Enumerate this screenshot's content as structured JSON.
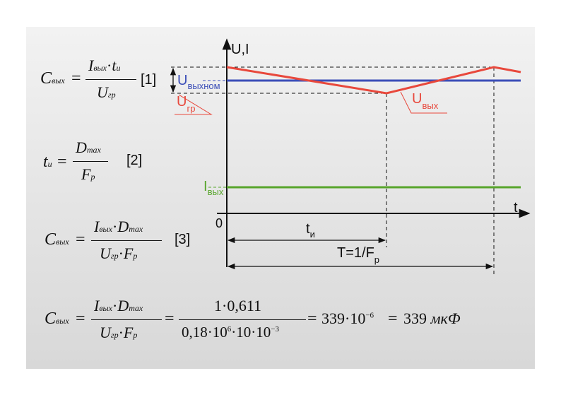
{
  "formulas": {
    "f1": {
      "lhs": {
        "base": "C",
        "sub": "вых"
      },
      "num": {
        "a": "I",
        "a_sub": "вых",
        "dot": "·",
        "b": "t",
        "b_sub": "и"
      },
      "den": {
        "a": "U",
        "a_sub": "гр"
      },
      "tag": "[1]"
    },
    "f2": {
      "lhs": {
        "base": "t",
        "sub": "и"
      },
      "num": {
        "a": "D",
        "a_sub": "max"
      },
      "den": {
        "a": "F",
        "a_sub": "р"
      },
      "tag": "[2]"
    },
    "f3": {
      "lhs": {
        "base": "C",
        "sub": "вых"
      },
      "num": {
        "a": "I",
        "a_sub": "вых",
        "dot": "·",
        "b": "D",
        "b_sub": "max"
      },
      "den": {
        "a": "U",
        "a_sub": "гр",
        "dot": "·",
        "b": "F",
        "b_sub": "р"
      },
      "tag": "[3]"
    },
    "f4": {
      "lhs": {
        "base": "C",
        "sub": "вых"
      },
      "num": {
        "a": "I",
        "a_sub": "вых",
        "dot": "·",
        "b": "D",
        "b_sub": "max"
      },
      "den": {
        "a": "U",
        "a_sub": "гр",
        "dot": "·",
        "b": "F",
        "b_sub": "р"
      },
      "num2": "1·0,611",
      "den2": {
        "p1": "0,18·10",
        "e1": "6",
        "p2": "·10·10",
        "e2": "−3"
      },
      "res1": {
        "base": "339·10",
        "exp": "−6"
      },
      "res2": {
        "value": "339",
        "unit": "мкФ"
      },
      "eq": "="
    }
  },
  "diagram": {
    "axis_y_label": "U,I",
    "axis_x_label": "t",
    "origin_label": "0",
    "u_nom": {
      "main": "U",
      "sub": "выхном"
    },
    "u_gr": {
      "main": "U",
      "sub": "гр"
    },
    "u_out": {
      "main": "U",
      "sub": "вых"
    },
    "i_out": {
      "main": "I",
      "sub": "вых"
    },
    "t_i": {
      "main": "t",
      "sub": "и"
    },
    "period": {
      "main": "T=1/F",
      "sub": "р"
    },
    "colors": {
      "red": "#e8483c",
      "blue": "#3c4fb8",
      "green": "#58a52c",
      "axis": "#111111"
    },
    "waveform": {
      "period_fraction_ti": 0.6,
      "ripple_top": 1.0,
      "ripple_bottom": -1.0,
      "u_nom_level": 0.0
    }
  }
}
